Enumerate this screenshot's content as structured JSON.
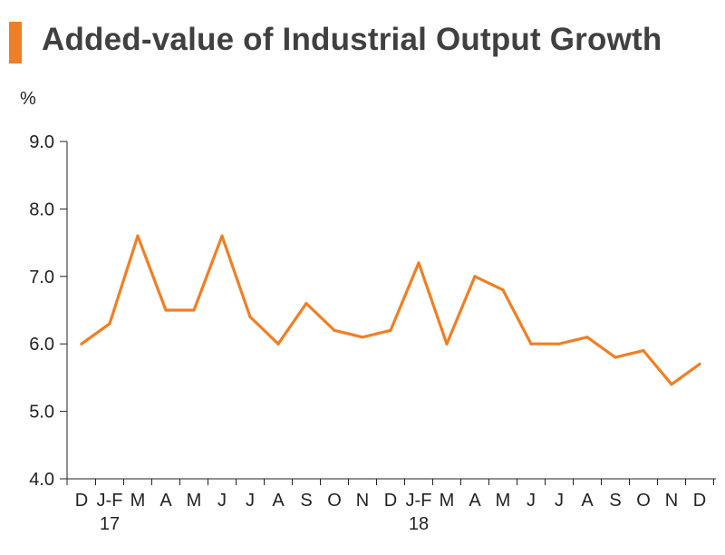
{
  "chart_data": {
    "type": "line",
    "title": "Added-value of Industrial Output Growth",
    "ylabel": "%",
    "xlabel": "",
    "ylim": [
      4.0,
      9.0
    ],
    "yticks": [
      "4.0",
      "5.0",
      "6.0",
      "7.0",
      "8.0",
      "9.0"
    ],
    "categories": [
      "D",
      "J-F",
      "M",
      "A",
      "M",
      "J",
      "J",
      "A",
      "S",
      "O",
      "N",
      "D",
      "J-F",
      "M",
      "A",
      "M",
      "J",
      "J",
      "A",
      "S",
      "O",
      "N",
      "D"
    ],
    "year_labels": [
      {
        "category_index": 1,
        "text": "17"
      },
      {
        "category_index": 12,
        "text": "18"
      }
    ],
    "series": [
      {
        "name": "Added-value of Industrial Output Growth",
        "color": "#f07f24",
        "values": [
          6.0,
          6.3,
          7.6,
          6.5,
          6.5,
          7.6,
          6.4,
          6.0,
          6.6,
          6.2,
          6.1,
          6.2,
          7.2,
          6.0,
          7.0,
          6.8,
          6.0,
          6.0,
          6.1,
          5.8,
          5.9,
          5.4,
          5.7
        ]
      }
    ],
    "grid": false,
    "legend": "none"
  },
  "colors": {
    "accent": "#f07f24",
    "axis": "#222222",
    "title": "#404040"
  }
}
